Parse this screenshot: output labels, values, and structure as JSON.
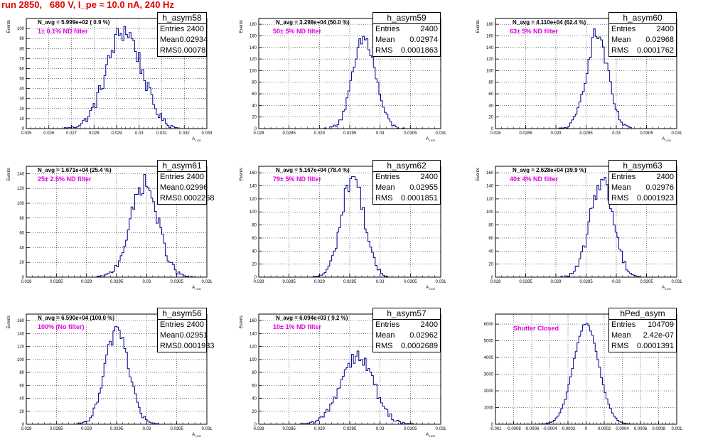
{
  "title": "run 2850,   680 V, I_pe ≈ 10.0 nA, 240 Hz",
  "colors": {
    "histogram": "#00008b",
    "title": "#e00000",
    "annotation": "#e000e0",
    "grid": "#000000"
  },
  "stats_labels": {
    "entries": "Entries",
    "mean": "Mean",
    "rms": "RMS"
  },
  "chart_data": [
    {
      "type": "histogram",
      "name": "h_asym58",
      "navg": "N_avg = 5.999e+02 ( 0.9 %)",
      "filter": "1± 0.1% ND filter",
      "stats": {
        "entries": "2400",
        "mean": "0.02934",
        "rms": "0.00078"
      },
      "xlim": [
        0.025,
        0.033
      ],
      "ylim": [
        0,
        110
      ],
      "xticks": [
        "0.025",
        "0.026",
        "0.027",
        "0.028",
        "0.029",
        "0.03",
        "0.031",
        "0.032",
        "0.033"
      ],
      "yticks": [
        "0",
        "10",
        "20",
        "30",
        "40",
        "50",
        "60",
        "70",
        "80",
        "90",
        "100"
      ],
      "xlabel": "A",
      "xlabel_sub": "LED",
      "ylabel": "Events",
      "mean": 0.02934,
      "sigma": 0.00078,
      "entries": 2400
    },
    {
      "type": "histogram",
      "name": "h_asym59",
      "navg": "N_avg = 3.298e+04 (50.0 %)",
      "filter": "50± 5% ND filter",
      "stats": {
        "entries": "2400",
        "mean": "0.02974",
        "rms": "0.0001863"
      },
      "xlim": [
        0.028,
        0.031
      ],
      "ylim": [
        0,
        190
      ],
      "xticks": [
        "0.028",
        "0.0285",
        "0.029",
        "0.0295",
        "0.03",
        "0.0305",
        "0.031"
      ],
      "yticks": [
        "0",
        "20",
        "40",
        "60",
        "80",
        "100",
        "120",
        "140",
        "160",
        "180"
      ],
      "xlabel": "A",
      "xlabel_sub": "LED",
      "ylabel": "Events",
      "mean": 0.02974,
      "sigma": 0.0001863,
      "entries": 2400
    },
    {
      "type": "histogram",
      "name": "h_asym60",
      "navg": "N_avg = 4.110e+04 (62.4 %)",
      "filter": "63± 5% ND filter",
      "stats": {
        "entries": "2400",
        "mean": "0.02968",
        "rms": "0.0001762"
      },
      "xlim": [
        0.028,
        0.031
      ],
      "ylim": [
        0,
        190
      ],
      "xticks": [
        "0.028",
        "0.0285",
        "0.029",
        "0.0295",
        "0.03",
        "0.0305",
        "0.031"
      ],
      "yticks": [
        "0",
        "20",
        "40",
        "60",
        "80",
        "100",
        "120",
        "140",
        "160",
        "180"
      ],
      "xlabel": "A",
      "xlabel_sub": "LED",
      "ylabel": "Events",
      "mean": 0.02968,
      "sigma": 0.0001762,
      "entries": 2400
    },
    {
      "type": "histogram",
      "name": "h_asym61",
      "navg": "N_avg = 1.671e+04 (25.4 %)",
      "filter": "25± 2.5% ND filter",
      "stats": {
        "entries": "2400",
        "mean": "0.02996",
        "rms": "0.0002268"
      },
      "xlim": [
        0.028,
        0.031
      ],
      "ylim": [
        0,
        150
      ],
      "xticks": [
        "0.028",
        "0.0285",
        "0.029",
        "0.0295",
        "0.03",
        "0.0305",
        "0.031"
      ],
      "yticks": [
        "0",
        "20",
        "40",
        "60",
        "80",
        "100",
        "120",
        "140"
      ],
      "xlabel": "A",
      "xlabel_sub": "LED",
      "ylabel": "Events",
      "mean": 0.02996,
      "sigma": 0.0002268,
      "entries": 2400
    },
    {
      "type": "histogram",
      "name": "h_asym62",
      "navg": "N_avg = 5.167e+04 (78.4 %)",
      "filter": "79± 5% ND filter",
      "stats": {
        "entries": "2400",
        "mean": "0.02955",
        "rms": "0.0001851"
      },
      "xlim": [
        0.028,
        0.031
      ],
      "ylim": [
        0,
        170
      ],
      "xticks": [
        "0.028",
        "0.0285",
        "0.029",
        "0.0295",
        "0.03",
        "0.0305",
        "0.031"
      ],
      "yticks": [
        "0",
        "20",
        "40",
        "60",
        "80",
        "100",
        "120",
        "140",
        "160"
      ],
      "xlabel": "A",
      "xlabel_sub": "LED",
      "ylabel": "Events",
      "mean": 0.02955,
      "sigma": 0.0001851,
      "entries": 2400
    },
    {
      "type": "histogram",
      "name": "h_asym63",
      "navg": "N_avg = 2.628e+04 (39.9 %)",
      "filter": "40± 4% ND filter",
      "stats": {
        "entries": "2400",
        "mean": "0.02976",
        "rms": "0.0001923"
      },
      "xlim": [
        0.028,
        0.031
      ],
      "ylim": [
        0,
        170
      ],
      "xticks": [
        "0.028",
        "0.0285",
        "0.029",
        "0.0295",
        "0.03",
        "0.0305",
        "0.031"
      ],
      "yticks": [
        "0",
        "20",
        "40",
        "60",
        "80",
        "100",
        "120",
        "140",
        "160"
      ],
      "xlabel": "A",
      "xlabel_sub": "LED",
      "ylabel": "Events",
      "mean": 0.02976,
      "sigma": 0.0001923,
      "entries": 2400
    },
    {
      "type": "histogram",
      "name": "h_asym56",
      "navg": "N_avg = 6.590e+04 (100.0 %)",
      "filter": "100% (No filter)",
      "stats": {
        "entries": "2400",
        "mean": "0.02951",
        "rms": "0.0001933"
      },
      "xlim": [
        0.028,
        0.031
      ],
      "ylim": [
        0,
        170
      ],
      "xticks": [
        "0.028",
        "0.0285",
        "0.029",
        "0.0295",
        "0.03",
        "0.0305",
        "0.031"
      ],
      "yticks": [
        "0",
        "20",
        "40",
        "60",
        "80",
        "100",
        "120",
        "140",
        "160"
      ],
      "xlabel": "A",
      "xlabel_sub": "LED",
      "ylabel": "Events",
      "mean": 0.02951,
      "sigma": 0.0001933,
      "entries": 2400
    },
    {
      "type": "histogram",
      "name": "h_asym57",
      "navg": "N_avg = 6.094e+03 ( 9.2 %)",
      "filter": "10± 1% ND filter",
      "stats": {
        "entries": "2400",
        "mean": "0.02962",
        "rms": "0.0002689"
      },
      "xlim": [
        0.028,
        0.031
      ],
      "ylim": [
        0,
        170
      ],
      "xticks": [
        "0.028",
        "0.0285",
        "0.029",
        "0.0295",
        "0.03",
        "0.0305",
        "0.031"
      ],
      "yticks": [
        "0",
        "20",
        "40",
        "60",
        "80",
        "100",
        "120",
        "140",
        "160"
      ],
      "xlabel": "A",
      "xlabel_sub": "LED",
      "ylabel": "Events",
      "mean": 0.02962,
      "sigma": 0.0002689,
      "entries": 2400
    },
    {
      "type": "histogram",
      "name": "hPed_asym",
      "navg": "",
      "filter": "Shutter Closed",
      "stats": {
        "entries": "104709",
        "mean": "2.42e-07",
        "rms": "0.0001391"
      },
      "xlim": [
        -0.001,
        0.001
      ],
      "ylim": [
        0,
        6600
      ],
      "xticks": [
        "-0.001",
        "-0.0008",
        "-0.0006",
        "-0.0004",
        "-0.0002",
        "0",
        "0.0002",
        "0.0004",
        "0.0006",
        "0.0008",
        "0.001"
      ],
      "yticks": [
        "0",
        "1000",
        "2000",
        "3000",
        "4000",
        "5000",
        "6000"
      ],
      "xlabel": "",
      "xlabel_sub": "",
      "ylabel": "",
      "mean": 2.42e-07,
      "sigma": 0.0001391,
      "entries": 104709
    }
  ]
}
